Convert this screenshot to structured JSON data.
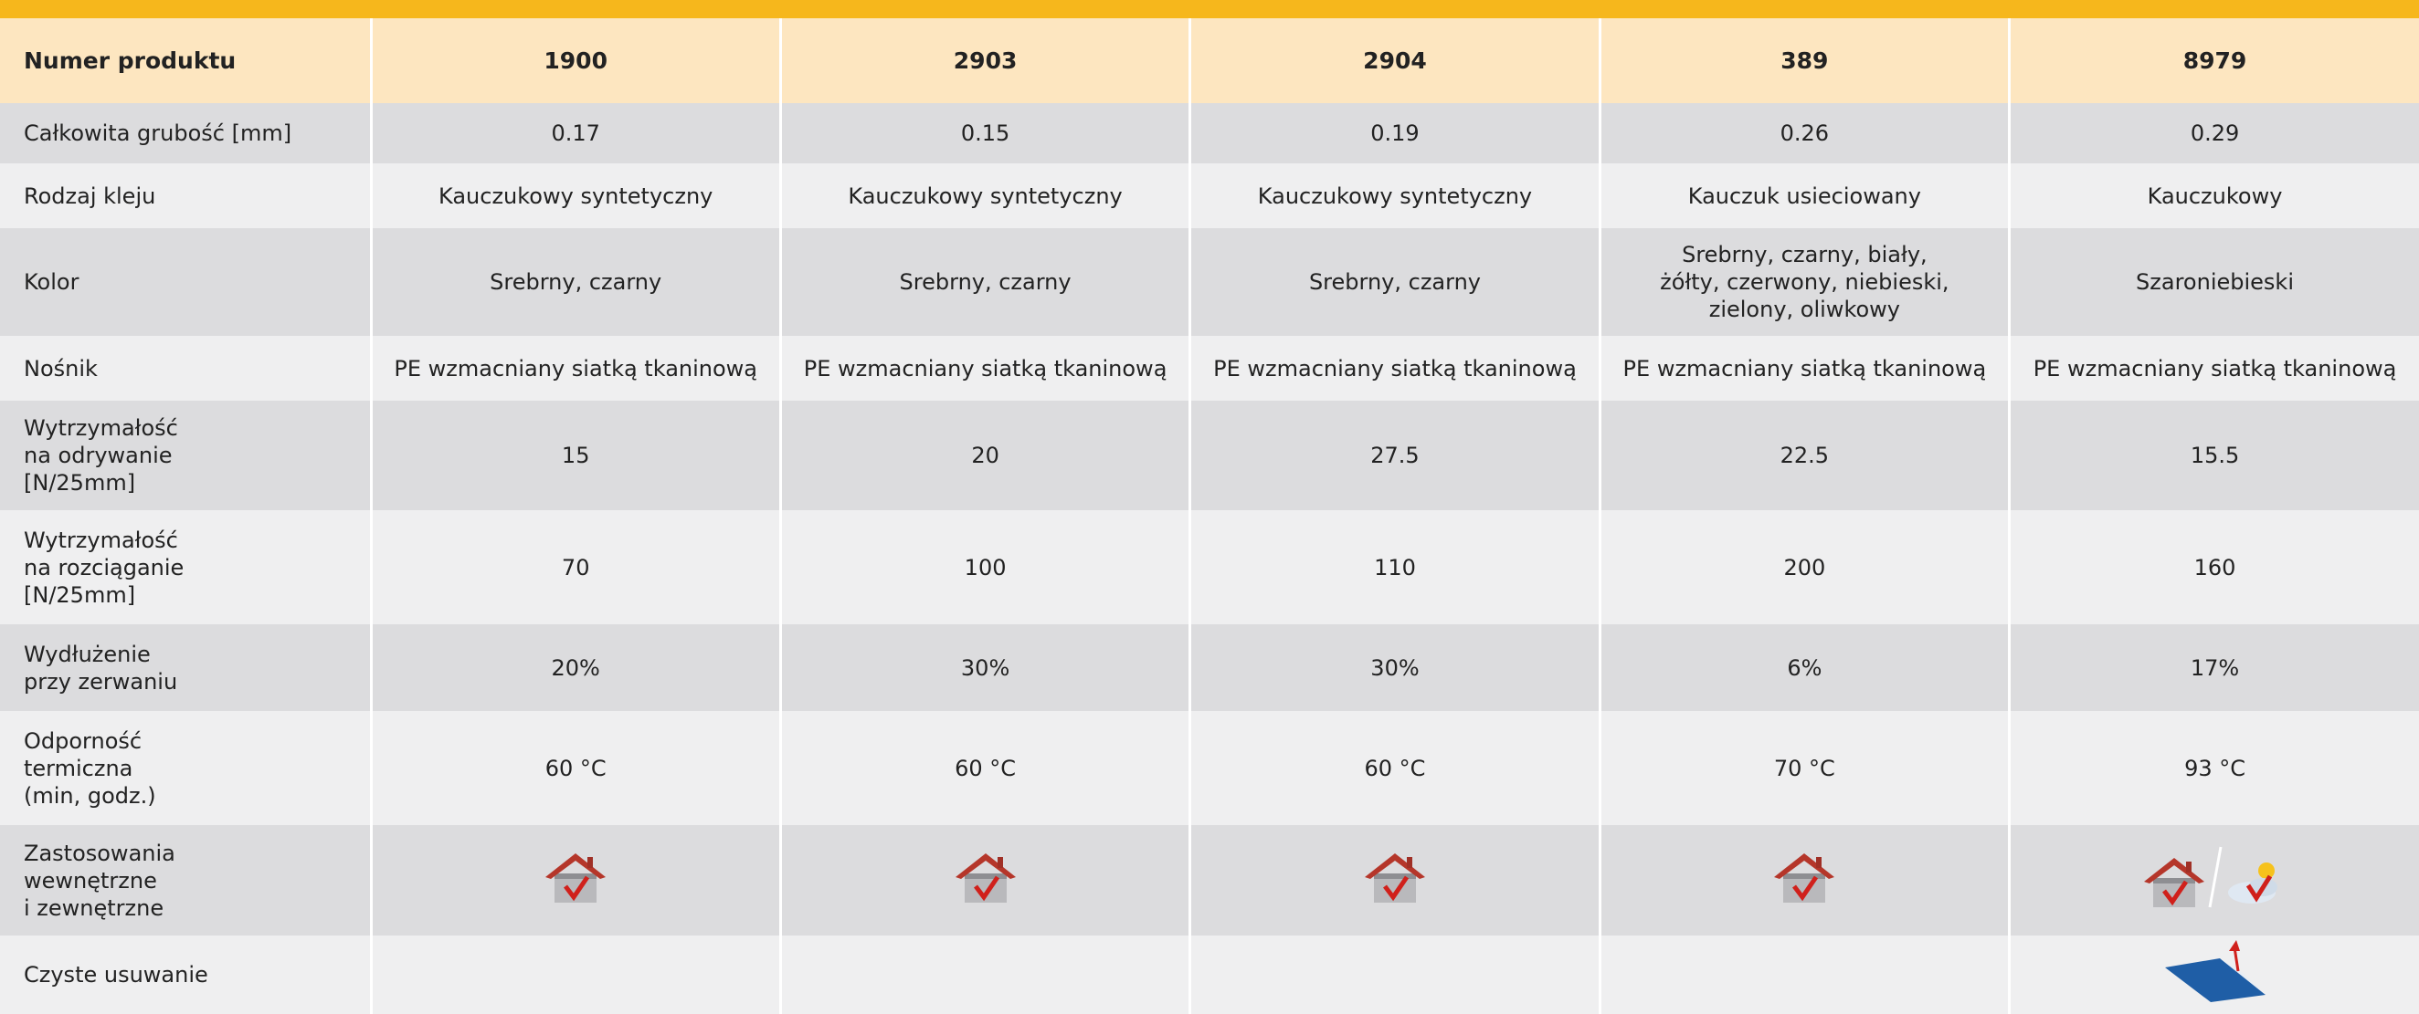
{
  "table": {
    "header": [
      "Numer produktu",
      "1900",
      "2903",
      "2904",
      "389",
      "8979"
    ],
    "rows": [
      {
        "label": "Całkowita grubość [mm]",
        "values": [
          "0.17",
          "0.15",
          "0.19",
          "0.26",
          "0.29"
        ]
      },
      {
        "label": "Rodzaj kleju",
        "values": [
          "Kauczukowy syntetyczny",
          "Kauczukowy syntetyczny",
          "Kauczukowy syntetyczny",
          "Kauczuk usieciowany",
          "Kauczukowy"
        ]
      },
      {
        "label": "Kolor",
        "values": [
          "Srebrny, czarny",
          "Srebrny, czarny",
          "Srebrny, czarny",
          "Srebrny, czarny, biały,\nżółty, czerwony, niebieski,\nzielony, oliwkowy",
          "Szaroniebieski"
        ]
      },
      {
        "label": "Nośnik",
        "values": [
          "PE wzmacniany siatką tkaninową",
          "PE wzmacniany siatką tkaninową",
          "PE wzmacniany siatką tkaninową",
          "PE wzmacniany siatką tkaninową",
          "PE wzmacniany siatką tkaninową"
        ]
      },
      {
        "label": "Wytrzymałość\nna odrywanie\n[N/25mm]",
        "values": [
          "15",
          "20",
          "27.5",
          "22.5",
          "15.5"
        ]
      },
      {
        "label": "Wytrzymałość\nna rozciąganie\n[N/25mm]",
        "values": [
          "70",
          "100",
          "110",
          "200",
          "160"
        ]
      },
      {
        "label": "Wydłużenie\nprzy zerwaniu",
        "values": [
          "20%",
          "30%",
          "30%",
          "6%",
          "17%"
        ]
      },
      {
        "label": "Odporność\ntermiczna\n(min, godz.)",
        "values": [
          "60 °C",
          "60 °C",
          "60 °C",
          "70 °C",
          "93 °C"
        ]
      }
    ],
    "icon_rows": [
      "Zastosowania\nwewnętrzne\ni zewnętrzne",
      "Czyste usuwanie"
    ]
  }
}
